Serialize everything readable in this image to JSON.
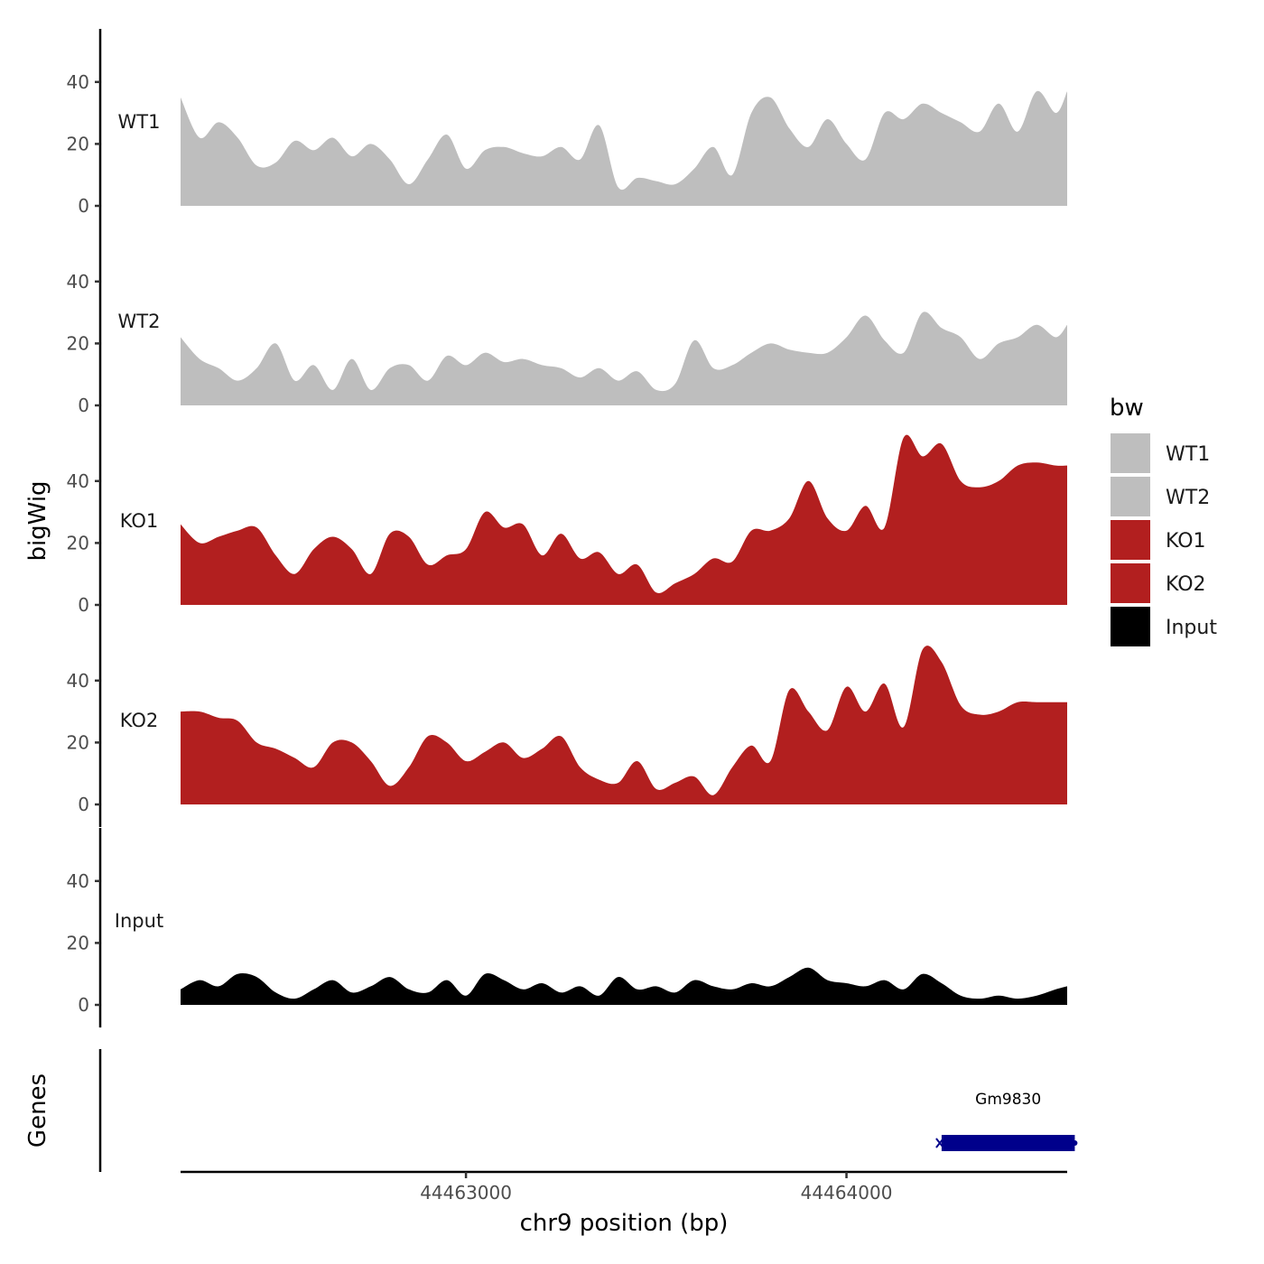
{
  "chart_data": {
    "type": "area",
    "xlabel": "chr9 position (bp)",
    "ylabel": "bigWig",
    "genes_label": "Genes",
    "xlim": [
      44462250,
      44464580
    ],
    "x_ticks": [
      44463000,
      44464000
    ],
    "x_tick_labels": [
      "44463000",
      "44464000"
    ],
    "ylim": [
      0,
      57
    ],
    "y_ticks": [
      0,
      20,
      40
    ],
    "y_tick_labels": [
      "0",
      "20",
      "40"
    ],
    "grid": false,
    "legend": {
      "title": "bw",
      "position": "right",
      "items": [
        {
          "label": "WT1",
          "color": "#bebebe"
        },
        {
          "label": "WT2",
          "color": "#bebebe"
        },
        {
          "label": "KO1",
          "color": "#b21f1f"
        },
        {
          "label": "KO2",
          "color": "#b21f1f"
        },
        {
          "label": "Input",
          "color": "#000000"
        }
      ]
    },
    "x": [
      44462250,
      44462300,
      44462350,
      44462400,
      44462450,
      44462500,
      44462550,
      44462600,
      44462650,
      44462700,
      44462750,
      44462800,
      44462850,
      44462900,
      44462950,
      44463000,
      44463050,
      44463100,
      44463150,
      44463200,
      44463250,
      44463300,
      44463350,
      44463400,
      44463450,
      44463500,
      44463550,
      44463600,
      44463650,
      44463700,
      44463750,
      44463800,
      44463850,
      44463900,
      44463950,
      44464000,
      44464050,
      44464100,
      44464150,
      44464200,
      44464250,
      44464300,
      44464350,
      44464400,
      44464450,
      44464500,
      44464550,
      44464580
    ],
    "series": [
      {
        "name": "WT1",
        "color": "#bebebe",
        "values": [
          35,
          22,
          27,
          22,
          13,
          14,
          21,
          18,
          22,
          16,
          20,
          15,
          7,
          15,
          23,
          12,
          18,
          19,
          17,
          16,
          19,
          15,
          26,
          6,
          9,
          8,
          7,
          12,
          19,
          10,
          30,
          35,
          25,
          19,
          28,
          20,
          15,
          30,
          28,
          33,
          30,
          27,
          24,
          33,
          24,
          37,
          30,
          37
        ]
      },
      {
        "name": "WT2",
        "color": "#bebebe",
        "values": [
          22,
          15,
          12,
          8,
          12,
          20,
          8,
          13,
          5,
          15,
          5,
          12,
          13,
          8,
          16,
          13,
          17,
          14,
          15,
          13,
          12,
          9,
          12,
          8,
          11,
          5,
          7,
          21,
          12,
          13,
          17,
          20,
          18,
          17,
          17,
          22,
          29,
          21,
          17,
          30,
          25,
          22,
          15,
          20,
          22,
          26,
          22,
          26
        ]
      },
      {
        "name": "KO1",
        "color": "#b21f1f",
        "values": [
          26,
          20,
          22,
          24,
          25,
          16,
          10,
          18,
          22,
          18,
          10,
          23,
          22,
          13,
          16,
          18,
          30,
          25,
          26,
          16,
          23,
          15,
          17,
          10,
          13,
          4,
          7,
          10,
          15,
          14,
          24,
          24,
          28,
          40,
          28,
          24,
          32,
          25,
          54,
          48,
          52,
          40,
          38,
          40,
          45,
          46,
          45,
          45
        ]
      },
      {
        "name": "KO2",
        "color": "#b21f1f",
        "values": [
          30,
          30,
          28,
          27,
          20,
          18,
          15,
          12,
          20,
          20,
          14,
          6,
          12,
          22,
          20,
          14,
          17,
          20,
          15,
          18,
          22,
          12,
          8,
          7,
          14,
          5,
          7,
          9,
          3,
          12,
          19,
          14,
          37,
          30,
          24,
          38,
          30,
          39,
          25,
          50,
          46,
          32,
          29,
          30,
          33,
          33,
          33,
          33
        ]
      },
      {
        "name": "Input",
        "color": "#000000",
        "values": [
          5,
          8,
          6,
          10,
          9,
          4,
          2,
          5,
          8,
          4,
          6,
          9,
          5,
          4,
          8,
          3,
          10,
          8,
          5,
          7,
          4,
          6,
          3,
          9,
          5,
          6,
          4,
          8,
          6,
          5,
          7,
          6,
          9,
          12,
          8,
          7,
          6,
          8,
          5,
          10,
          7,
          3,
          2,
          3,
          2,
          3,
          5,
          6
        ]
      }
    ],
    "genes": [
      {
        "name": "Gm9830",
        "start": 44464250,
        "end": 44464600,
        "strand": "-",
        "color": "#00008b"
      }
    ]
  }
}
